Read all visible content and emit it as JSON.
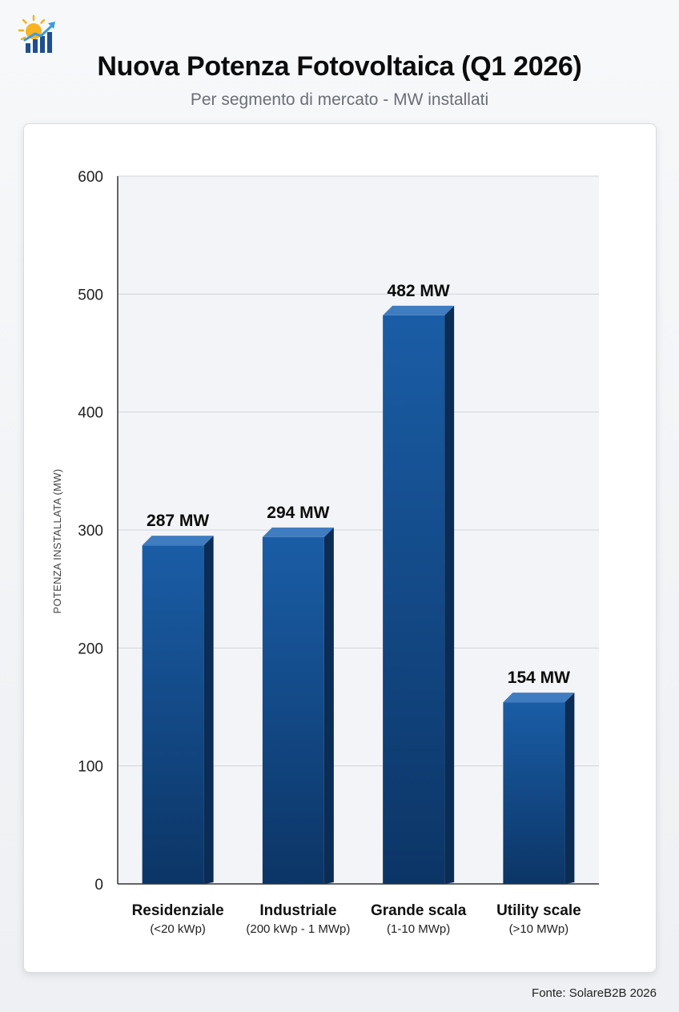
{
  "header": {
    "title": "Nuova Potenza Fotovoltaica (Q1 2026)",
    "subtitle": "Per segmento di mercato - MW installati",
    "logo_icon": "sun-growth-chart-icon"
  },
  "footer": {
    "source": "Fonte: SolareB2B 2026"
  },
  "colors": {
    "bar_top": "#1a5da6",
    "bar_bottom": "#0c3566",
    "bar_side": "#0a2c55",
    "bar_cap": "#3f7cc0",
    "grid": "#cfd3d9",
    "plot_bg": "#f3f4f7"
  },
  "chart_data": {
    "type": "bar",
    "title": "Nuova Potenza Fotovoltaica (Q1 2026)",
    "subtitle": "Per segmento di mercato - MW installati",
    "xlabel": "",
    "ylabel": "POTENZA INSTALLATA (MW)",
    "ylim": [
      0,
      600
    ],
    "yticks": [
      "0",
      "100",
      "200",
      "300",
      "400",
      "500",
      "600"
    ],
    "grid": true,
    "categories": [
      "Residenziale",
      "Industriale",
      "Grande scala",
      "Utility scale"
    ],
    "category_sublabels": [
      "(<20 kWp)",
      "(200 kWp - 1 MWp)",
      "(1-10 MWp)",
      "(>10 MWp)"
    ],
    "values": [
      287,
      294,
      482,
      154
    ],
    "value_labels": [
      "287 MW",
      "294 MW",
      "482 MW",
      "154 MW"
    ]
  }
}
